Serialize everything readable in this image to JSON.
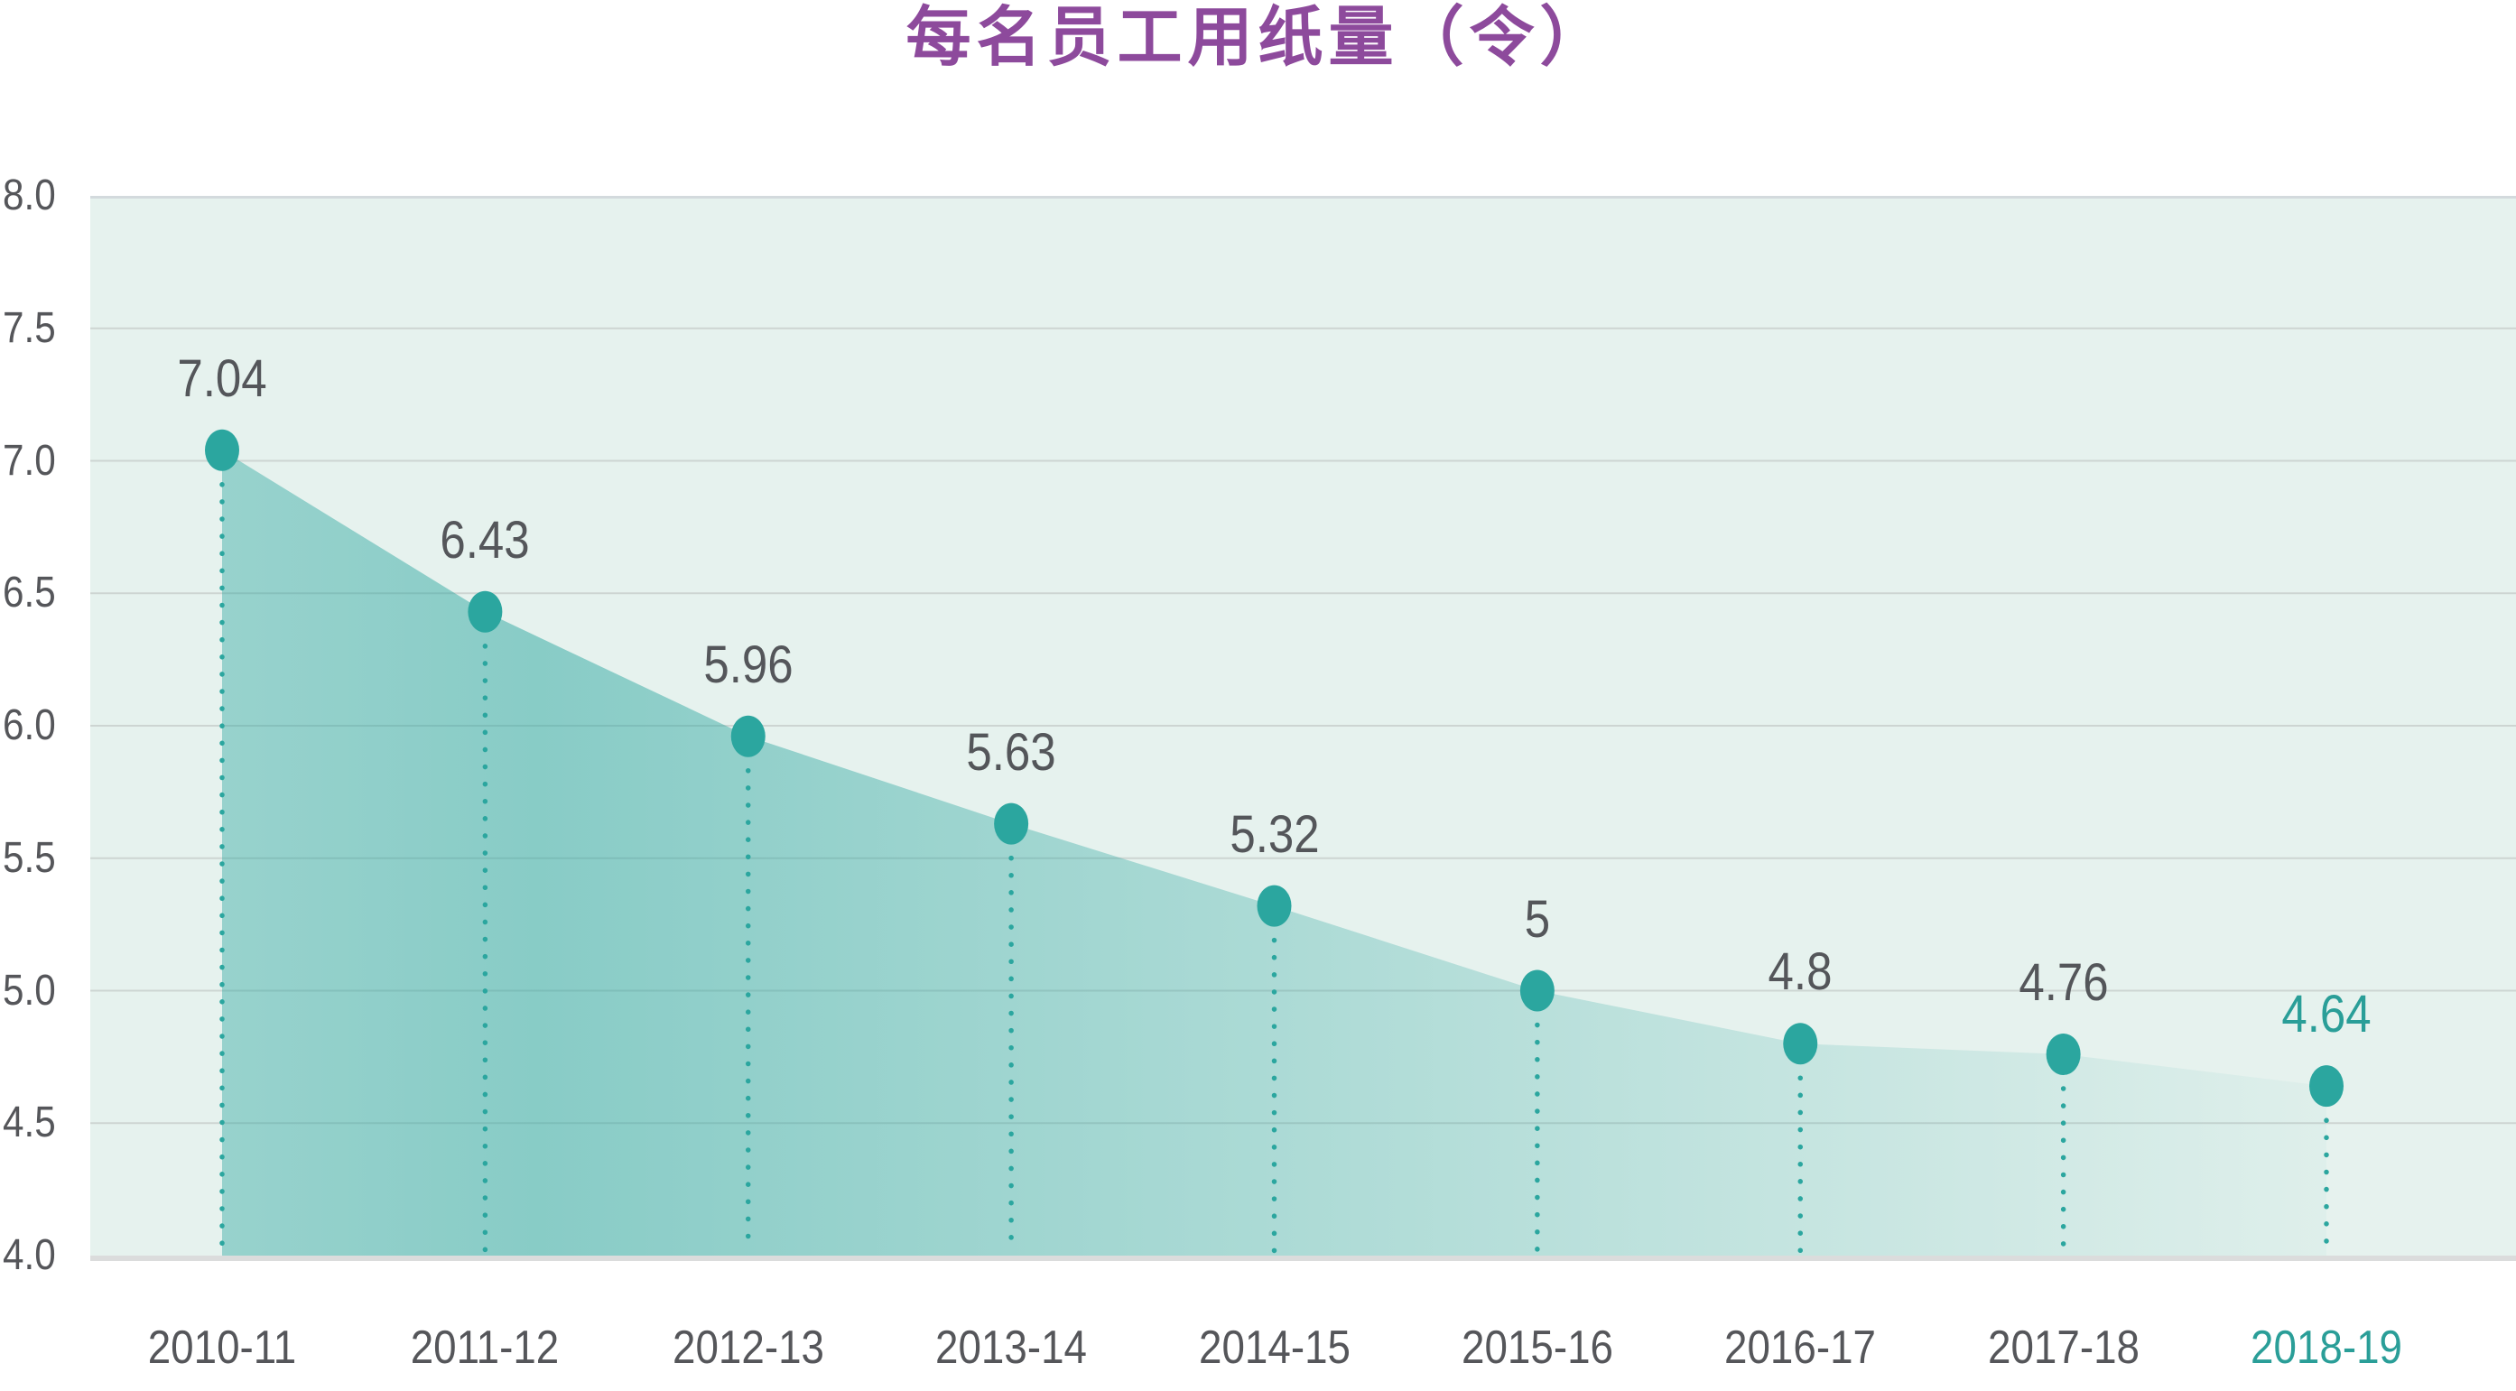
{
  "title": "每名员工用纸量（令）",
  "chart_data": {
    "type": "area",
    "categories": [
      "2010-11",
      "2011-12",
      "2012-13",
      "2013-14",
      "2014-15",
      "2015-16",
      "2016-17",
      "2017-18",
      "2018-19"
    ],
    "values": [
      7.04,
      6.43,
      5.96,
      5.63,
      5.32,
      5,
      4.8,
      4.76,
      4.64
    ],
    "labels": [
      "7.04",
      "6.43",
      "5.96",
      "5.63",
      "5.32",
      "5",
      "4.8",
      "4.76",
      "4.64"
    ],
    "title": "每名员工用纸量（令）",
    "xlabel": "",
    "ylabel": "",
    "ylim": [
      4.0,
      8.0
    ],
    "ytick_step": 0.5,
    "yticks": [
      "8.0",
      "7.5",
      "7.0",
      "6.5",
      "6.0",
      "5.5",
      "5.0",
      "4.5",
      "4.0"
    ],
    "grid": true,
    "legend": "none",
    "highlight_last_point": true,
    "marker": "ellipse",
    "leader_lines": "dotted-vertical"
  },
  "colors": {
    "title_purple": "#8d4a9c",
    "teal": "#2ba69f",
    "teal_text": "#2a9e98",
    "label_gray": "#54565a",
    "plot_bg": "#e6f2ee",
    "gridline": "#cdd5d2",
    "plot_top_border": "#d3dadd",
    "axis_bar": "#dbdcdc",
    "area_gradient_start": "rgba(43,166,159,0.42)",
    "area_gradient_mid": "rgba(43,166,159,0.50)",
    "area_gradient_end": "rgba(43,166,159,0.04)"
  }
}
